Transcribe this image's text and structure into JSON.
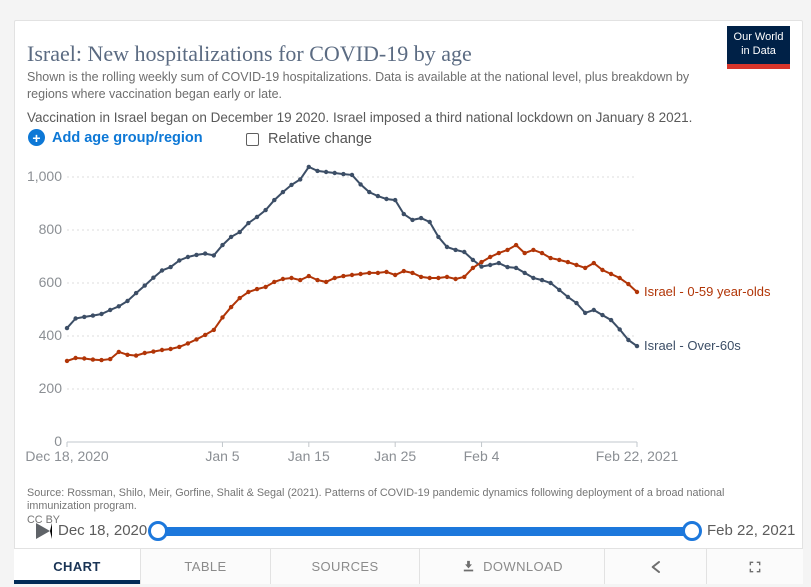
{
  "header": {
    "title": "Israel: New hospitalizations for COVID-19 by age",
    "subtitle": "Shown is the rolling weekly sum of COVID-19 hospitalizations. Data is available at the national level, plus breakdown by regions where vaccination began early or late.",
    "note": "Vaccination in Israel began on December 19 2020. Israel imposed a third national lockdown on January 8 2021.",
    "logo": {
      "line1": "Our World",
      "line2": "in Data"
    }
  },
  "controls": {
    "add_label": "Add age group/region",
    "relative_label": "Relative change",
    "relative_checked": false
  },
  "chart_data": {
    "type": "line",
    "title": "Israel: New hospitalizations for COVID-19 by age",
    "xlabel": "",
    "ylabel": "",
    "x_start_date": "Dec 18, 2020",
    "x_end_date": "Feb 22, 2021",
    "ylim": [
      0,
      1050
    ],
    "grid": true,
    "legend_position": "end-of-line",
    "y_ticks": [
      {
        "value": 0,
        "label": "0"
      },
      {
        "value": 200,
        "label": "200"
      },
      {
        "value": 400,
        "label": "400"
      },
      {
        "value": 600,
        "label": "600"
      },
      {
        "value": 800,
        "label": "800"
      },
      {
        "value": 1000,
        "label": "1,000"
      }
    ],
    "x_ticks": [
      {
        "label": "Dec 18, 2020",
        "day": 0
      },
      {
        "label": "Jan 5",
        "day": 18
      },
      {
        "label": "Jan 15",
        "day": 28
      },
      {
        "label": "Jan 25",
        "day": 38
      },
      {
        "label": "Feb 4",
        "day": 48
      },
      {
        "label": "Feb 22, 2021",
        "day": 66
      }
    ],
    "series": [
      {
        "name": "Israel - Over-60s",
        "color": "#3C4E66",
        "values": [
          430,
          466,
          472,
          477,
          483,
          498,
          512,
          532,
          562,
          590,
          620,
          647,
          660,
          685,
          698,
          706,
          711,
          704,
          743,
          774,
          792,
          826,
          849,
          875,
          913,
          943,
          970,
          991,
          1038,
          1023,
          1019,
          1015,
          1011,
          1008,
          972,
          943,
          928,
          917,
          913,
          860,
          838,
          845,
          830,
          774,
          736,
          725,
          717,
          687,
          662,
          668,
          675,
          660,
          657,
          638,
          619,
          611,
          600,
          574,
          547,
          524,
          487,
          498,
          479,
          460,
          425,
          385,
          362
        ]
      },
      {
        "name": "Israel - 0-59 year-olds",
        "color": "#B13507",
        "values": [
          306,
          317,
          315,
          311,
          309,
          313,
          340,
          329,
          326,
          336,
          341,
          347,
          351,
          359,
          372,
          387,
          404,
          423,
          470,
          509,
          543,
          566,
          577,
          585,
          604,
          615,
          619,
          611,
          626,
          611,
          604,
          619,
          626,
          630,
          634,
          638,
          638,
          642,
          630,
          645,
          638,
          623,
          619,
          619,
          623,
          615,
          623,
          657,
          679,
          698,
          713,
          725,
          743,
          713,
          725,
          713,
          694,
          687,
          679,
          668,
          657,
          675,
          649,
          634,
          619,
          596,
          566
        ]
      }
    ]
  },
  "footer": {
    "source": "Source: Rossman, Shilo, Meir, Gorfine, Shalit & Segal (2021). Patterns of COVID-19 pandemic dynamics following deployment of a broad national immunization program.",
    "license": "CC BY"
  },
  "timeline": {
    "start_label": "Dec 18, 2020",
    "end_label": "Feb 22, 2021"
  },
  "tabs": [
    {
      "label": "CHART",
      "active": true
    },
    {
      "label": "TABLE",
      "active": false
    },
    {
      "label": "SOURCES",
      "active": false
    },
    {
      "label": "DOWNLOAD",
      "active": false
    }
  ],
  "colors": {
    "accent_blue": "#0d78d6",
    "timeline_blue": "#1d78dc",
    "logo_navy": "#002147",
    "logo_red": "#d8352a",
    "active_tab_navy": "#012c57",
    "series_over60": "#3C4E66",
    "series_0_59": "#B13507"
  }
}
